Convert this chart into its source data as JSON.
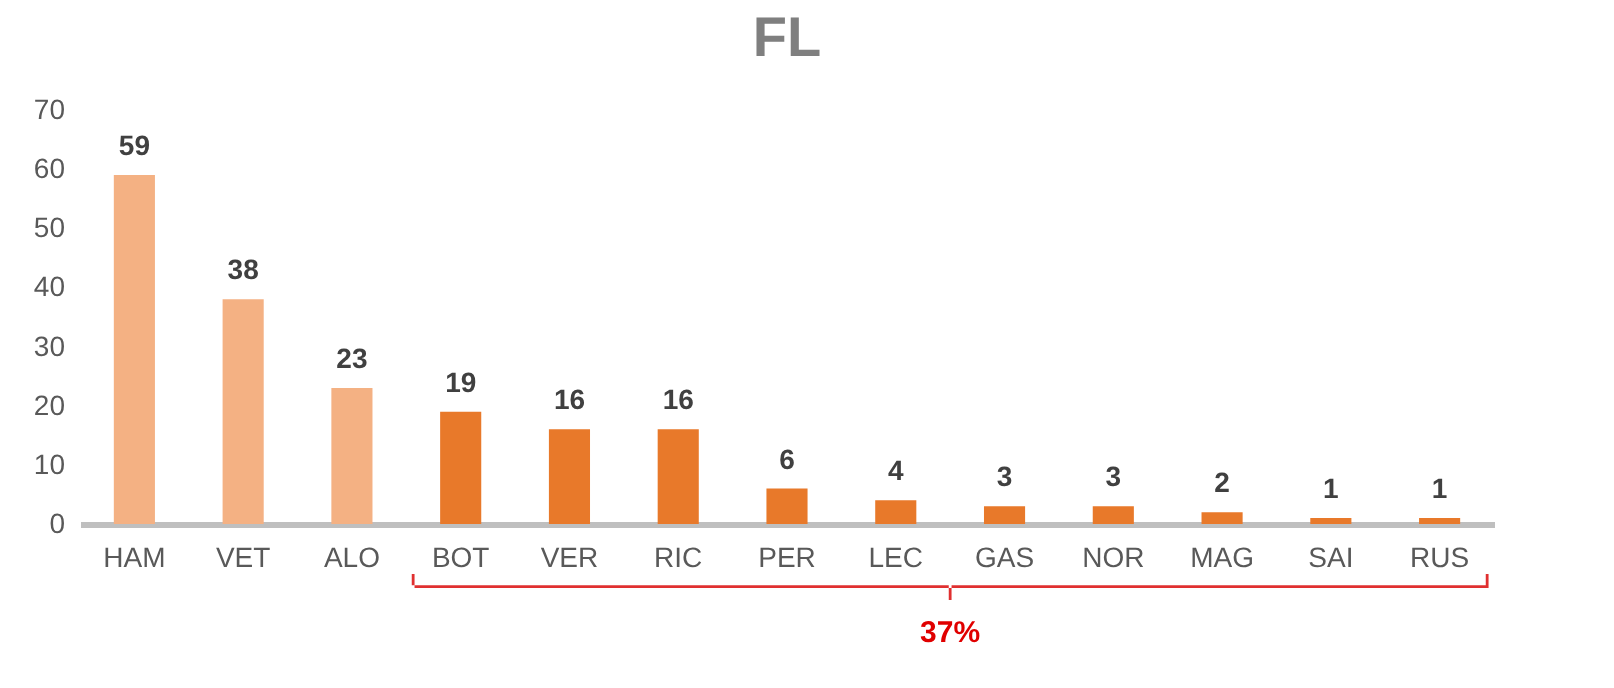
{
  "chart_data": {
    "type": "bar",
    "title": "FL",
    "categories": [
      "HAM",
      "VET",
      "ALO",
      "BOT",
      "VER",
      "RIC",
      "PER",
      "LEC",
      "GAS",
      "NOR",
      "MAG",
      "SAI",
      "RUS"
    ],
    "values": [
      59,
      38,
      23,
      19,
      16,
      16,
      6,
      4,
      3,
      3,
      2,
      1,
      1
    ],
    "colors": [
      "#f4b183",
      "#f4b183",
      "#f4b183",
      "#e8792a",
      "#e8792a",
      "#e8792a",
      "#e8792a",
      "#e8792a",
      "#e8792a",
      "#e8792a",
      "#e8792a",
      "#e8792a",
      "#e8792a"
    ],
    "ylim": [
      0,
      70
    ],
    "yticks": [
      0,
      10,
      20,
      30,
      40,
      50,
      60,
      70
    ],
    "grid": false,
    "legend": false,
    "data_labels": true,
    "annotations": [
      "37%"
    ]
  }
}
